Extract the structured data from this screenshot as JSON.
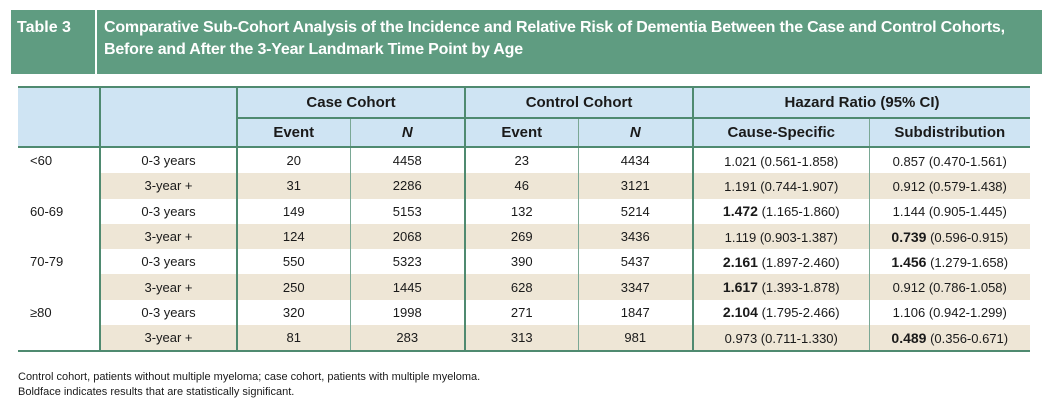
{
  "title": {
    "label": "Table 3",
    "text_line1": "Comparative Sub-Cohort Analysis of the Incidence and Relative Risk of Dementia Between the Case and Control Cohorts,",
    "text_line2": "Before and After the 3-Year Landmark Time Point by Age"
  },
  "header": {
    "group_case": "Case Cohort",
    "group_control": "Control Cohort",
    "group_hr": "Hazard Ratio (95% CI)",
    "col_event": "Event",
    "col_n": "N",
    "col_event2": "Event",
    "col_n2": "N",
    "col_cause": "Cause-Specific",
    "col_subdist": "Subdistribution"
  },
  "rows": [
    {
      "age": "<60",
      "period": "0-3 years",
      "case_event": "20",
      "case_n": "4458",
      "ctrl_event": "23",
      "ctrl_n": "4434",
      "cs_bold": "",
      "cs_rest": "1.021 (0.561-1.858)",
      "sd_bold": "",
      "sd_rest": "0.857 (0.470-1.561)"
    },
    {
      "age": "",
      "period": "3-year +",
      "case_event": "31",
      "case_n": "2286",
      "ctrl_event": "46",
      "ctrl_n": "3121",
      "cs_bold": "",
      "cs_rest": "1.191 (0.744-1.907)",
      "sd_bold": "",
      "sd_rest": "0.912 (0.579-1.438)"
    },
    {
      "age": "60-69",
      "period": "0-3 years",
      "case_event": "149",
      "case_n": "5153",
      "ctrl_event": "132",
      "ctrl_n": "5214",
      "cs_bold": "1.472",
      "cs_rest": " (1.165-1.860)",
      "sd_bold": "",
      "sd_rest": "1.144 (0.905-1.445)"
    },
    {
      "age": "",
      "period": "3-year +",
      "case_event": "124",
      "case_n": "2068",
      "ctrl_event": "269",
      "ctrl_n": "3436",
      "cs_bold": "",
      "cs_rest": "1.119 (0.903-1.387)",
      "sd_bold": "0.739",
      "sd_rest": " (0.596-0.915)"
    },
    {
      "age": "70-79",
      "period": "0-3 years",
      "case_event": "550",
      "case_n": "5323",
      "ctrl_event": "390",
      "ctrl_n": "5437",
      "cs_bold": "2.161",
      "cs_rest": " (1.897-2.460)",
      "sd_bold": "1.456",
      "sd_rest": " (1.279-1.658)"
    },
    {
      "age": "",
      "period": "3-year +",
      "case_event": "250",
      "case_n": "1445",
      "ctrl_event": "628",
      "ctrl_n": "3347",
      "cs_bold": "1.617",
      "cs_rest": " (1.393-1.878)",
      "sd_bold": "",
      "sd_rest": "0.912 (0.786-1.058)"
    },
    {
      "age": "≥80",
      "period": "0-3 years",
      "case_event": "320",
      "case_n": "1998",
      "ctrl_event": "271",
      "ctrl_n": "1847",
      "cs_bold": "2.104",
      "cs_rest": " (1.795-2.466)",
      "sd_bold": "",
      "sd_rest": "1.106 (0.942-1.299)"
    },
    {
      "age": "",
      "period": "3-year +",
      "case_event": "81",
      "case_n": "283",
      "ctrl_event": "313",
      "ctrl_n": "981",
      "cs_bold": "",
      "cs_rest": "0.973 (0.711-1.330)",
      "sd_bold": "0.489",
      "sd_rest": " (0.356-0.671)"
    }
  ],
  "footnote": {
    "line1": "Control cohort, patients without multiple myeloma; case cohort, patients with multiple myeloma.",
    "line2": "Boldface indicates results that are statistically significant."
  },
  "colors": {
    "title_bg": "#5f9c81",
    "header_shade": "#cfe4f3",
    "alt_row": "#eee6d6",
    "rule": "#4f8a70"
  }
}
